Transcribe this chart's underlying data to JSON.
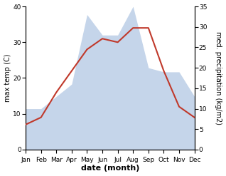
{
  "months": [
    "Jan",
    "Feb",
    "Mar",
    "Apr",
    "May",
    "Jun",
    "Jul",
    "Aug",
    "Sep",
    "Oct",
    "Nov",
    "Dec"
  ],
  "temp": [
    7,
    9,
    16,
    22,
    28,
    31,
    30,
    34,
    34,
    22,
    12,
    9
  ],
  "precip": [
    10,
    10,
    13,
    16,
    33,
    28,
    28,
    35,
    20,
    19,
    19,
    13
  ],
  "temp_color": "#c0392b",
  "precip_color": "#c5d5ea",
  "left_ylabel": "max temp (C)",
  "right_ylabel": "med. precipitation (kg/m2)",
  "xlabel": "date (month)",
  "ylim_left": [
    0,
    40
  ],
  "ylim_right": [
    0,
    35
  ],
  "yticks_left": [
    0,
    10,
    20,
    30,
    40
  ],
  "yticks_right": [
    0,
    5,
    10,
    15,
    20,
    25,
    30,
    35
  ],
  "background_color": "#ffffff",
  "label_fontsize": 7,
  "tick_fontsize": 6.5,
  "xlabel_fontsize": 8
}
